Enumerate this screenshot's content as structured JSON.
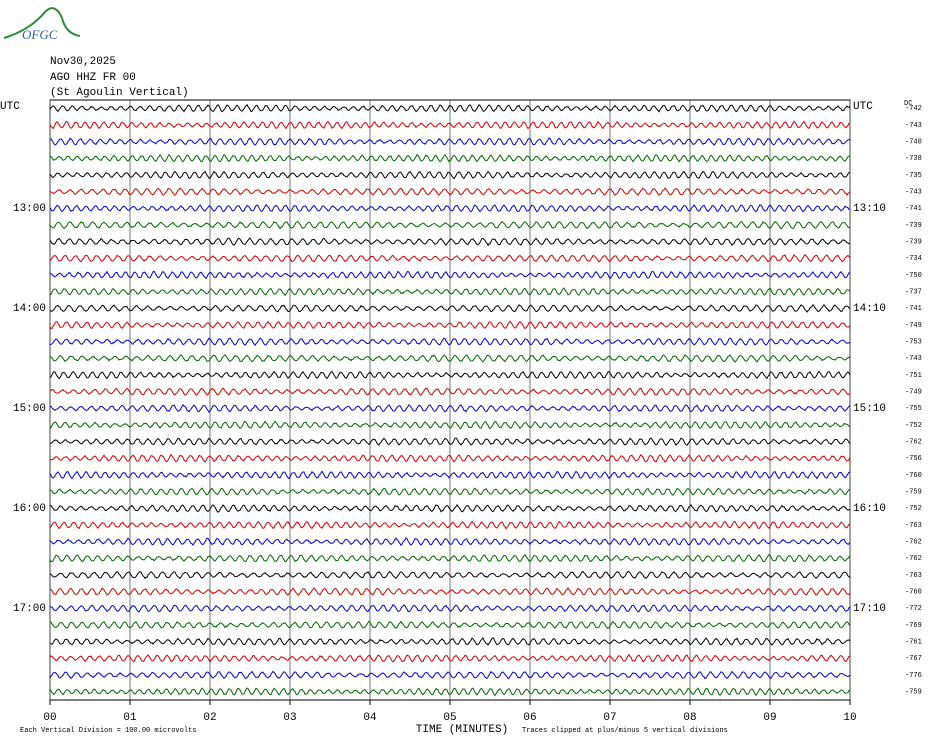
{
  "chart_data": {
    "type": "helicorder",
    "logo": "OFGC",
    "title": "Nov30,2025",
    "subtitle": [
      "AGO HHZ FR 00",
      "(St Agoulin Vertical)"
    ],
    "categories": [
      "UTC",
      null,
      null,
      null,
      null,
      null,
      "13:00",
      null,
      null,
      null,
      null,
      null,
      "14:00",
      null,
      null,
      null,
      null,
      null,
      "15:00",
      null,
      null,
      null,
      null,
      null,
      "16:00",
      null,
      null,
      null,
      null,
      null,
      "17:00",
      null,
      null,
      null,
      null,
      null
    ],
    "right_labels": [
      "UTC",
      null,
      null,
      null,
      null,
      null,
      "13:10",
      null,
      null,
      null,
      null,
      null,
      "14:10",
      null,
      null,
      null,
      null,
      null,
      "15:10",
      null,
      null,
      null,
      null,
      null,
      "16:10",
      null,
      null,
      null,
      null,
      null,
      "17:10",
      null,
      null,
      null,
      null,
      null
    ],
    "dc_label": "DC",
    "dc_offsets": [
      -742,
      -743,
      -740,
      -738,
      -735,
      -743,
      -741,
      -739,
      -739,
      -734,
      -750,
      -737,
      -741,
      -749,
      -753,
      -743,
      -751,
      -749,
      -755,
      -752,
      -762,
      -756,
      -760,
      -759,
      -752,
      -763,
      -762,
      -762,
      -763,
      -760,
      -772,
      -769,
      -761,
      -767,
      -776,
      -759
    ],
    "colors": [
      "#000000",
      "#d00000",
      "#0000c8",
      "#006400"
    ],
    "xlim": [
      0,
      10
    ],
    "xticks": [
      {
        "value": 0,
        "label": "00"
      },
      {
        "value": 1,
        "label": "01"
      },
      {
        "value": 2,
        "label": "02"
      },
      {
        "value": 3,
        "label": "03"
      },
      {
        "value": 4,
        "label": "04"
      },
      {
        "value": 5,
        "label": "05"
      },
      {
        "value": 6,
        "label": "06"
      },
      {
        "value": 7,
        "label": "07"
      },
      {
        "value": 8,
        "label": "08"
      },
      {
        "value": 9,
        "label": "09"
      },
      {
        "value": 10,
        "label": "10"
      }
    ],
    "xlabel": "TIME (MINUTES)",
    "scale_note": "Each Vertical Division =  100.00 microvolts",
    "clip_note": "Traces clipped at plus/minus 5 vertical divisions",
    "grid": true
  }
}
